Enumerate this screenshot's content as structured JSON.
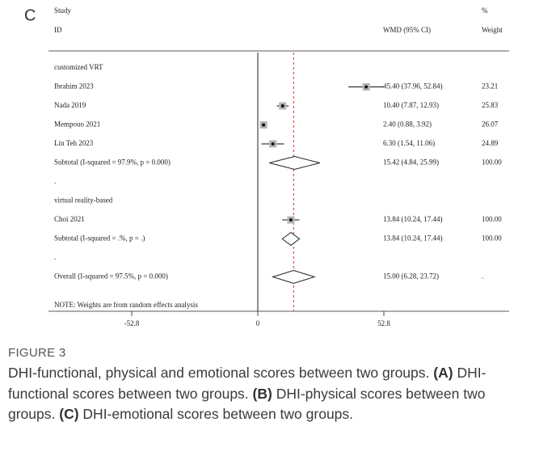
{
  "chart_data": {
    "type": "forest",
    "panel_label": "C",
    "headers": {
      "study": "Study",
      "id": "ID",
      "estimate": "WMD (95% CI)",
      "weight_pct": "%",
      "weight": "Weight"
    },
    "rows": [
      {
        "kind": "group",
        "label": "customized VRT"
      },
      {
        "kind": "study",
        "label": "Ibrahim 2023",
        "estimate": 45.4,
        "lower": 37.96,
        "upper": 52.84,
        "ci_label": "45.40 (37.96, 52.84)",
        "weight": "23.21"
      },
      {
        "kind": "study",
        "label": "Nada 2019",
        "estimate": 10.4,
        "lower": 7.87,
        "upper": 12.93,
        "ci_label": "10.40 (7.87, 12.93)",
        "weight": "25.83"
      },
      {
        "kind": "study",
        "label": "Mempouo 2021",
        "estimate": 2.4,
        "lower": 0.88,
        "upper": 3.92,
        "ci_label": "2.40 (0.88, 3.92)",
        "weight": "26.07"
      },
      {
        "kind": "study",
        "label": "Lin Teh 2023",
        "estimate": 6.3,
        "lower": 1.54,
        "upper": 11.06,
        "ci_label": "6.30 (1.54, 11.06)",
        "weight": "24.89"
      },
      {
        "kind": "subtotal",
        "label": "Subtotal  (I-squared = 97.9%, p = 0.000)",
        "estimate": 15.42,
        "lower": 4.84,
        "upper": 25.99,
        "ci_label": "15.42 (4.84, 25.99)",
        "weight": "100.00"
      },
      {
        "kind": "spacer",
        "label": "."
      },
      {
        "kind": "group",
        "label": "virtual reality-based"
      },
      {
        "kind": "study",
        "label": "Choi 2021",
        "estimate": 13.84,
        "lower": 10.24,
        "upper": 17.44,
        "ci_label": "13.84 (10.24, 17.44)",
        "weight": "100.00"
      },
      {
        "kind": "subtotal",
        "label": "Subtotal  (I-squared = .%, p = .)",
        "estimate": 13.84,
        "lower": 10.24,
        "upper": 17.44,
        "ci_label": "13.84 (10.24, 17.44)",
        "weight": "100.00"
      },
      {
        "kind": "spacer",
        "label": "."
      },
      {
        "kind": "overall",
        "label": "Overall  (I-squared = 97.5%, p = 0.000)",
        "estimate": 15.0,
        "lower": 6.28,
        "upper": 23.72,
        "ci_label": "15.00 (6.28, 23.72)",
        "weight": "."
      }
    ],
    "note": "NOTE: Weights are from random effects analysis",
    "xlim": [
      -52.8,
      52.8
    ],
    "xticks": [
      -52.8,
      0,
      52.8
    ]
  },
  "caption": {
    "figure_label": "FIGURE 3",
    "segments": [
      {
        "text": "DHI-functional, physical and emotional scores between two groups.",
        "bold": false
      },
      {
        "text": "(A)",
        "bold": true
      },
      {
        "text": "DHI-functional scores between two groups.",
        "bold": false
      },
      {
        "text": "(B)",
        "bold": true
      },
      {
        "text": "DHI-physical scores between two groups.",
        "bold": false
      },
      {
        "text": "(C)",
        "bold": true
      },
      {
        "text": "DHI-emotional scores between two groups.",
        "bold": false
      }
    ]
  }
}
